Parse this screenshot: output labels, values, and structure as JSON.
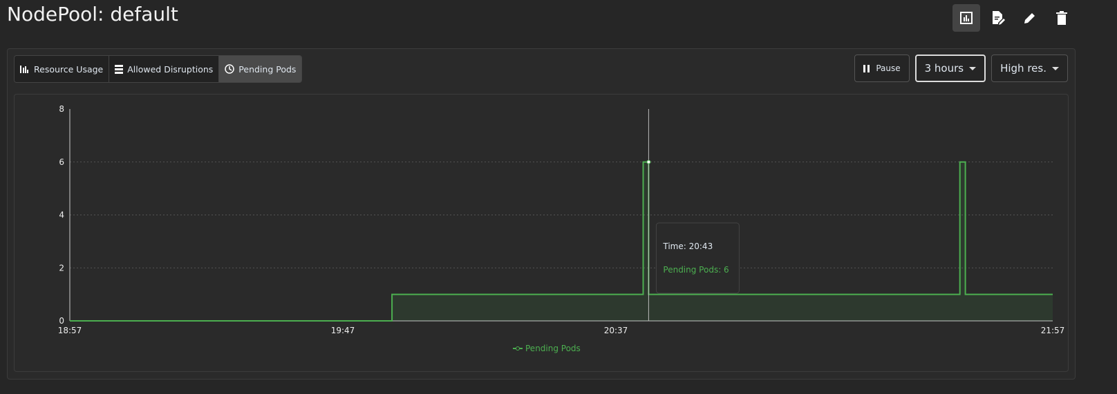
{
  "header": {
    "title": "NodePool: default",
    "actions": [
      {
        "icon": "bar-chart-icon",
        "active": true
      },
      {
        "icon": "edit-document-icon"
      },
      {
        "icon": "pencil-icon"
      },
      {
        "icon": "trash-icon"
      }
    ]
  },
  "tabs": [
    {
      "label": "Resource Usage",
      "icon": "bar-chart-icon"
    },
    {
      "label": "Allowed Disruptions",
      "icon": "server-stack-icon"
    },
    {
      "label": "Pending Pods",
      "icon": "clock-icon",
      "active": true
    }
  ],
  "controls": {
    "pause": "Pause",
    "range": "3 hours",
    "resolution": "High res."
  },
  "chart_data": {
    "type": "area",
    "x_ticks": [
      "18:57",
      "19:47",
      "20:37",
      "21:57"
    ],
    "x_range": [
      "18:57",
      "21:57"
    ],
    "y_ticks": [
      0,
      2,
      4,
      6,
      8
    ],
    "ylim": [
      0,
      8
    ],
    "grid": true,
    "legend_position": "bottom",
    "color": "#4caf50",
    "series": [
      {
        "name": "Pending Pods",
        "points": [
          [
            "18:57",
            0
          ],
          [
            "19:56",
            0
          ],
          [
            "19:56",
            1
          ],
          [
            "20:42",
            1
          ],
          [
            "20:42",
            6
          ],
          [
            "20:43",
            6
          ],
          [
            "20:43",
            1
          ],
          [
            "21:40",
            1
          ],
          [
            "21:40",
            6
          ],
          [
            "21:41",
            6
          ],
          [
            "21:41",
            1
          ],
          [
            "21:57",
            1
          ]
        ]
      }
    ],
    "tooltip": {
      "time_label": "Time: 20:43",
      "value_label": "Pending Pods: 6",
      "x": "20:43",
      "y": 6
    }
  }
}
